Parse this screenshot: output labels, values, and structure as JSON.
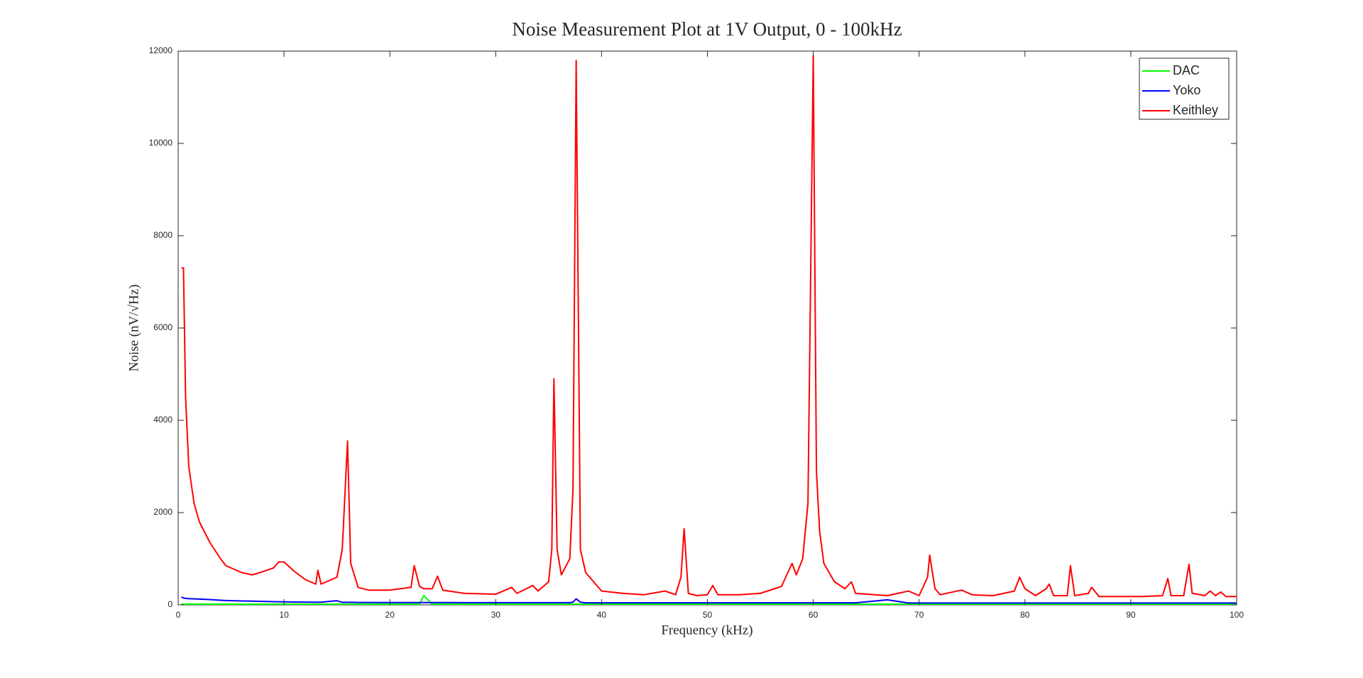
{
  "chart_data": {
    "type": "line",
    "title": "Noise Measurement Plot at 1V Output, 0 - 100kHz",
    "x_label": "Frequency (kHz)",
    "y_label": "Noise (nV/√Hz)",
    "x": [
      0.3,
      0.5,
      0.7,
      1,
      1.5,
      2,
      3,
      4,
      4.5,
      6,
      7,
      8,
      9,
      9.5,
      10,
      11,
      12,
      13,
      13.2,
      13.5,
      15,
      15.5,
      16,
      16.3,
      17,
      18,
      20,
      21,
      22,
      22.3,
      22.8,
      23.2,
      24,
      24.5,
      25,
      27,
      30,
      31.5,
      32,
      33.5,
      34,
      35,
      35.3,
      35.5,
      35.8,
      36.2,
      37,
      37.3,
      37.6,
      38,
      38.5,
      40,
      42,
      44,
      46,
      47,
      47.5,
      47.8,
      48.2,
      49,
      50,
      50.5,
      51,
      53,
      55,
      57,
      58,
      58.4,
      59,
      59.5,
      60,
      60.3,
      60.6,
      61,
      62,
      63,
      63.6,
      64,
      67,
      69,
      70,
      70.8,
      71,
      71.5,
      72,
      74,
      75,
      77,
      79,
      79.5,
      80,
      81,
      82,
      82.3,
      82.7,
      84,
      84.3,
      84.7,
      86,
      86.3,
      87,
      90,
      91,
      93,
      93.5,
      93.8,
      95,
      95.5,
      95.8,
      97,
      97.5,
      98,
      98.5,
      99,
      100
    ],
    "series": [
      {
        "name": "DAC",
        "color": "#00ff00",
        "values": [
          15,
          15,
          15,
          15,
          15,
          15,
          15,
          15,
          15,
          15,
          15,
          15,
          15,
          15,
          15,
          15,
          15,
          15,
          15,
          15,
          15,
          15,
          15,
          15,
          15,
          15,
          15,
          15,
          15,
          15,
          15,
          200,
          15,
          15,
          15,
          15,
          15,
          15,
          15,
          15,
          15,
          15,
          15,
          15,
          15,
          15,
          15,
          15,
          15,
          15,
          15,
          15,
          15,
          15,
          15,
          15,
          15,
          15,
          15,
          15,
          15,
          15,
          15,
          15,
          15,
          15,
          15,
          15,
          15,
          15,
          15,
          15,
          15,
          15,
          15,
          15,
          15,
          15,
          15,
          15,
          15,
          15,
          15,
          15,
          15,
          15,
          15,
          15,
          15,
          15,
          15,
          15,
          15,
          15,
          15,
          15,
          15,
          15,
          15,
          15,
          15,
          15,
          15,
          15,
          15,
          15,
          15,
          15,
          15,
          15,
          15,
          15,
          15,
          15,
          15
        ]
      },
      {
        "name": "Yoko",
        "color": "#0000ff",
        "values": [
          170,
          150,
          140,
          135,
          130,
          125,
          115,
          100,
          95,
          85,
          80,
          75,
          70,
          68,
          65,
          62,
          60,
          58,
          57,
          57,
          90,
          55,
          55,
          55,
          52,
          52,
          50,
          50,
          50,
          50,
          50,
          50,
          50,
          50,
          50,
          48,
          48,
          48,
          48,
          48,
          48,
          48,
          48,
          48,
          48,
          48,
          48,
          60,
          130,
          60,
          45,
          45,
          45,
          45,
          45,
          45,
          45,
          45,
          45,
          45,
          45,
          45,
          45,
          45,
          45,
          45,
          45,
          45,
          45,
          45,
          45,
          45,
          45,
          45,
          45,
          45,
          45,
          45,
          110,
          40,
          40,
          40,
          40,
          40,
          40,
          40,
          40,
          40,
          40,
          40,
          40,
          40,
          40,
          40,
          40,
          40,
          40,
          40,
          40,
          40,
          40,
          40,
          40,
          40,
          40,
          40,
          40,
          40,
          40,
          40,
          40,
          40,
          40,
          40,
          40
        ]
      },
      {
        "name": "Keithley",
        "color": "#ff0000",
        "values": [
          7300,
          7300,
          4500,
          3000,
          2200,
          1800,
          1350,
          1000,
          850,
          700,
          650,
          720,
          800,
          930,
          930,
          720,
          550,
          450,
          750,
          450,
          600,
          1200,
          3550,
          900,
          380,
          320,
          320,
          350,
          380,
          850,
          400,
          350,
          350,
          620,
          320,
          250,
          230,
          380,
          250,
          420,
          300,
          500,
          1200,
          4900,
          1200,
          650,
          1000,
          2500,
          11800,
          1200,
          700,
          300,
          250,
          220,
          300,
          220,
          600,
          1650,
          250,
          200,
          220,
          420,
          220,
          220,
          250,
          400,
          900,
          650,
          1000,
          2200,
          11900,
          2900,
          1600,
          900,
          500,
          350,
          500,
          250,
          200,
          300,
          200,
          600,
          1080,
          350,
          220,
          320,
          220,
          200,
          300,
          600,
          350,
          200,
          350,
          450,
          200,
          200,
          850,
          200,
          250,
          380,
          180,
          180,
          180,
          200,
          570,
          200,
          200,
          880,
          250,
          200,
          300,
          200,
          280,
          180,
          180
        ]
      }
    ],
    "xlim": [
      0,
      100
    ],
    "xticks": [
      0,
      10,
      20,
      30,
      40,
      50,
      60,
      70,
      80,
      90,
      100
    ],
    "ylim": [
      0,
      12000
    ],
    "yticks": [
      0,
      2000,
      4000,
      6000,
      8000,
      10000,
      12000
    ],
    "legend": "top-right",
    "grid": false
  }
}
